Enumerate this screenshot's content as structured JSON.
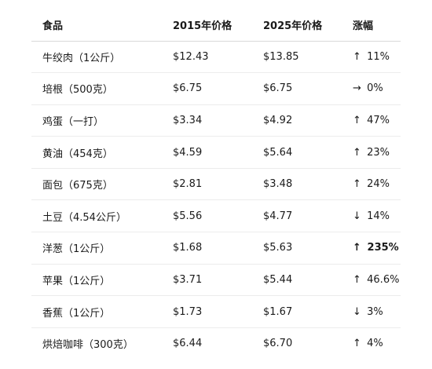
{
  "table": {
    "headers": [
      "食品",
      "2015年价格",
      "2025年价格",
      "涨幅"
    ],
    "rows": [
      {
        "food": "牛绞肉（1公斤）",
        "price_2015": "$12.43",
        "price_2025": "$13.85",
        "arrow": "↑",
        "change": "11%",
        "bold": false
      },
      {
        "food": "培根（500克）",
        "price_2015": "$6.75",
        "price_2025": "$6.75",
        "arrow": "→",
        "change": "0%",
        "bold": false
      },
      {
        "food": "鸡蛋（一打）",
        "price_2015": "$3.34",
        "price_2025": "$4.92",
        "arrow": "↑",
        "change": "47%",
        "bold": false
      },
      {
        "food": "黄油（454克）",
        "price_2015": "$4.59",
        "price_2025": "$5.64",
        "arrow": "↑",
        "change": "23%",
        "bold": false
      },
      {
        "food": "面包（675克）",
        "price_2015": "$2.81",
        "price_2025": "$3.48",
        "arrow": "↑",
        "change": "24%",
        "bold": false
      },
      {
        "food": "土豆（4.54公斤）",
        "price_2015": "$5.56",
        "price_2025": "$4.77",
        "arrow": "↓",
        "change": "14%",
        "bold": false
      },
      {
        "food": "洋葱（1公斤）",
        "price_2015": "$1.68",
        "price_2025": "$5.63",
        "arrow": "↑",
        "change": "235%",
        "bold": true
      },
      {
        "food": "苹果（1公斤）",
        "price_2015": "$3.71",
        "price_2025": "$5.44",
        "arrow": "↑",
        "change": "46.6%",
        "bold": false
      },
      {
        "food": "香蕉（1公斤）",
        "price_2015": "$1.73",
        "price_2025": "$1.67",
        "arrow": "↓",
        "change": "3%",
        "bold": false
      },
      {
        "food": "烘焙咖啡（300克）",
        "price_2015": "$6.44",
        "price_2025": "$6.70",
        "arrow": "↑",
        "change": "4%",
        "bold": false
      }
    ]
  }
}
